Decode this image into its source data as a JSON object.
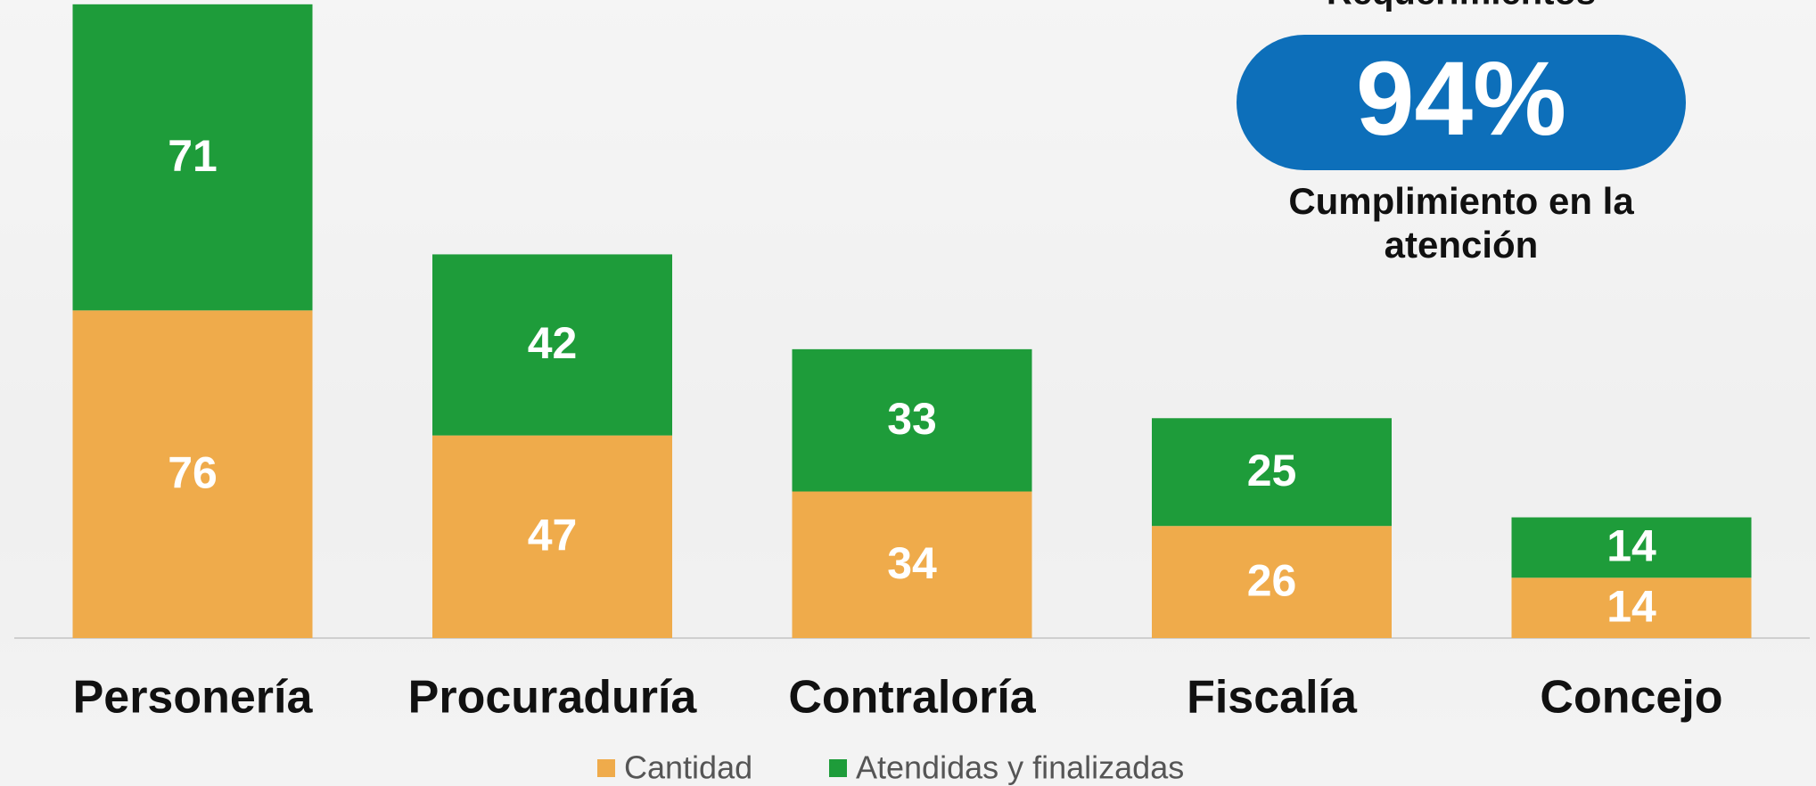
{
  "chart_data": {
    "type": "bar",
    "stacked": true,
    "categories": [
      "Personería",
      "Procuraduría",
      "Contraloría",
      "Fiscalía",
      "Concejo"
    ],
    "series": [
      {
        "name": "Cantidad",
        "color": "#efab4b",
        "values": [
          76,
          47,
          34,
          26,
          14
        ]
      },
      {
        "name": "Atendidas y finalizadas",
        "color": "#1e9c3a",
        "values": [
          71,
          42,
          33,
          25,
          14
        ]
      }
    ],
    "ylim": [
      0,
      148
    ],
    "legend": "bottom",
    "annotations": {
      "header": "Requerimientos",
      "badge": "94%",
      "badge_color": "#0d6fba",
      "caption": [
        "Cumplimiento en la",
        "atención"
      ]
    }
  }
}
